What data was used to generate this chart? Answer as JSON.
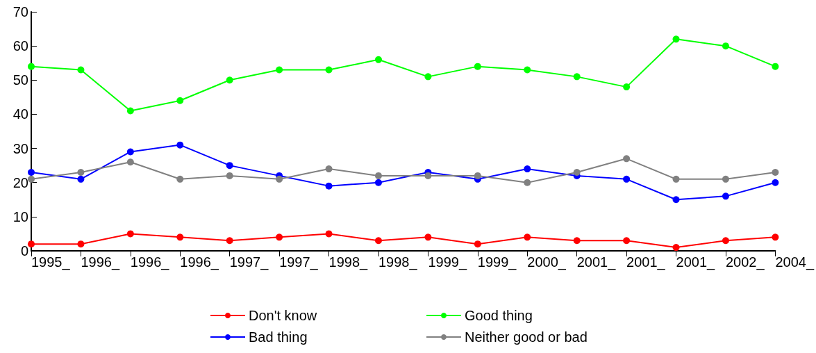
{
  "chart_data": {
    "type": "line",
    "categories": [
      "1995_",
      "1996_",
      "1996_",
      "1996_",
      "1997_",
      "1997_",
      "1998_",
      "1998_",
      "1999_",
      "1999_",
      "2000_",
      "2001_",
      "2001_",
      "2001_",
      "2002_",
      "2004_"
    ],
    "series": [
      {
        "name": "Don't know",
        "color": "#ff0000",
        "values": [
          2,
          2,
          5,
          4,
          3,
          4,
          5,
          3,
          4,
          2,
          4,
          3,
          3,
          1,
          3,
          4
        ]
      },
      {
        "name": "Good thing",
        "color": "#00ff00",
        "values": [
          54,
          53,
          41,
          44,
          50,
          53,
          53,
          56,
          51,
          54,
          53,
          51,
          48,
          62,
          60,
          54
        ]
      },
      {
        "name": "Bad thing",
        "color": "#0000ff",
        "values": [
          23,
          21,
          29,
          31,
          25,
          22,
          19,
          20,
          23,
          21,
          24,
          22,
          21,
          15,
          16,
          20
        ]
      },
      {
        "name": "Neither good or bad",
        "color": "#808080",
        "values": [
          21,
          23,
          26,
          21,
          22,
          21,
          24,
          22,
          22,
          22,
          20,
          23,
          27,
          21,
          21,
          23
        ]
      }
    ],
    "ylim": [
      0,
      70
    ],
    "yticks": [
      0,
      10,
      20,
      30,
      40,
      50,
      60,
      70
    ],
    "grid": false,
    "legend": "bottom",
    "marker": "circle",
    "line_style": "solid"
  }
}
